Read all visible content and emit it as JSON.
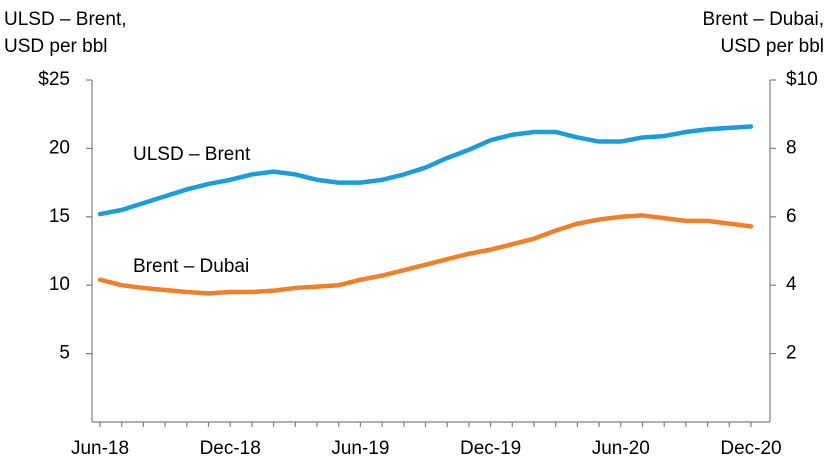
{
  "chart_data": {
    "type": "line",
    "y_label": [
      "ULSD – Brent,",
      "USD per bbl"
    ],
    "y2_label": [
      "Brent – Dubai,",
      "USD per bbl"
    ],
    "categories": [
      "Jun-18",
      null,
      null,
      null,
      null,
      null,
      "Dec-18",
      null,
      null,
      null,
      null,
      null,
      "Jun-19",
      null,
      null,
      null,
      null,
      null,
      "Dec-19",
      null,
      null,
      null,
      null,
      null,
      "Jun-20",
      null,
      null,
      null,
      null,
      null,
      "Dec-20"
    ],
    "series": [
      {
        "name": "ULSD – Brent",
        "color": "#1a9ed9",
        "values": [
          15.2,
          15.5,
          16.0,
          16.5,
          17.0,
          17.4,
          17.7,
          18.1,
          18.3,
          18.1,
          17.7,
          17.5,
          17.5,
          17.7,
          18.1,
          18.6,
          19.3,
          19.9,
          20.6,
          21.0,
          21.2,
          21.2,
          20.8,
          20.5,
          20.5,
          20.8,
          20.9,
          21.2,
          21.4,
          21.5,
          21.6
        ]
      },
      {
        "name": "Brent – Dubai",
        "color": "#f07f2a",
        "axis": "y2",
        "values": [
          4.16,
          4.0,
          3.92,
          3.86,
          3.8,
          3.76,
          3.8,
          3.8,
          3.84,
          3.92,
          3.96,
          4.0,
          4.16,
          4.28,
          4.44,
          4.6,
          4.76,
          4.92,
          5.04,
          5.2,
          5.36,
          5.6,
          5.8,
          5.92,
          6.0,
          6.04,
          5.96,
          5.88,
          5.88,
          5.8,
          5.72
        ]
      }
    ],
    "ylim": [
      0,
      25
    ],
    "yticks": [
      5,
      10,
      15,
      20,
      {
        "value": 25,
        "label": "$25"
      }
    ],
    "y2lim": [
      0,
      10
    ],
    "y2ticks": [
      2,
      4,
      6,
      8,
      {
        "value": 10,
        "label": "$10"
      }
    ]
  }
}
